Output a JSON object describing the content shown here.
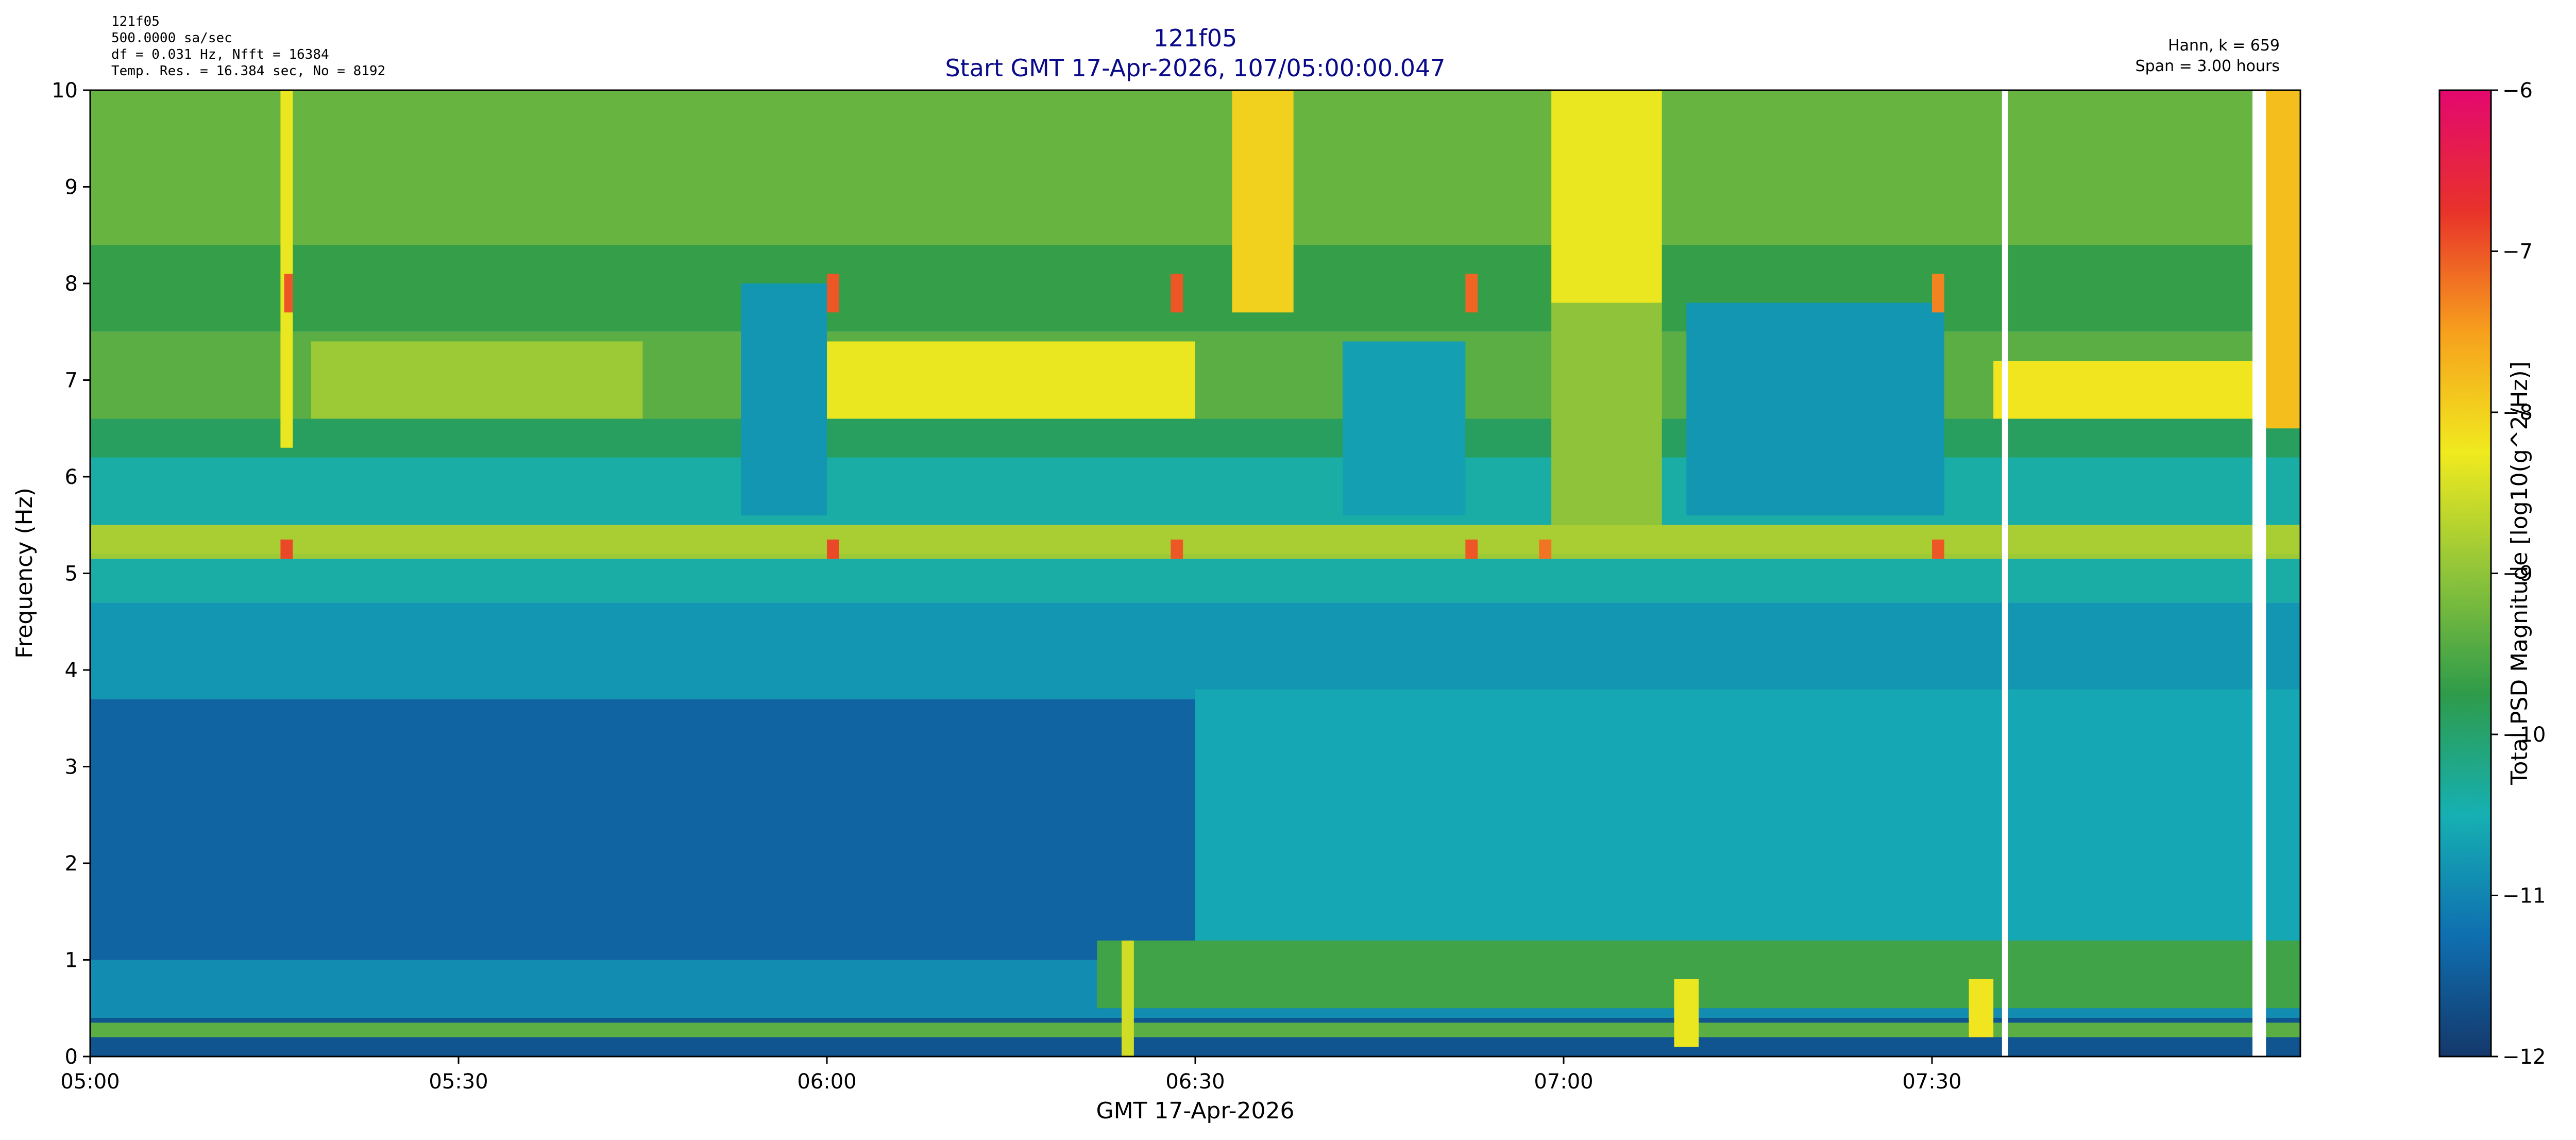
{
  "chart_data": {
    "type": "heatmap",
    "title": "121f05",
    "subtitle": "Start GMT 17-Apr-2026, 107/05:00:00.047",
    "info_lines": [
      "121f05",
      "500.0000 sa/sec",
      "df = 0.031 Hz,  Nfft = 16384",
      "Temp. Res. = 16.384 sec, No = 8192"
    ],
    "right_info_lines": [
      "Hann, k = 659",
      "Span = 3.00 hours"
    ],
    "xlabel": "GMT 17-Apr-2026",
    "ylabel": "Frequency (Hz)",
    "colorbar_label": "Total PSD Magnitude [log10(g^2/Hz)]",
    "x_ticks": [
      "05:00",
      "05:30",
      "06:00",
      "06:30",
      "07:00",
      "07:30"
    ],
    "x_tick_minutes": [
      0,
      30,
      60,
      90,
      120,
      150
    ],
    "xlim_minutes": [
      0,
      180
    ],
    "y_ticks": [
      0,
      1,
      2,
      3,
      4,
      5,
      6,
      7,
      8,
      9,
      10
    ],
    "ylim": [
      0,
      10
    ],
    "colorbar_ticks": [
      -12,
      -11,
      -10,
      -9,
      -8,
      -7,
      -6
    ],
    "clim": [
      -12,
      -6
    ],
    "colormap": [
      "#14386b",
      "#0f6fb0",
      "#16b0b3",
      "#2e9b4a",
      "#8fc43a",
      "#f0ea1e",
      "#f7a01d",
      "#e8322a",
      "#e3086f"
    ],
    "data_gaps_minutes": [
      [
        155.7,
        156.2
      ],
      [
        176.1,
        177.2
      ]
    ],
    "base_level": [
      [
        0.0,
        0.4,
        -11.6
      ],
      [
        0.4,
        1.0,
        -10.9
      ],
      [
        1.0,
        3.7,
        -11.4
      ],
      [
        3.7,
        4.7,
        -10.8
      ],
      [
        4.7,
        5.15,
        -10.4
      ],
      [
        5.15,
        5.5,
        -8.9
      ],
      [
        5.5,
        6.2,
        -10.4
      ],
      [
        6.2,
        6.6,
        -9.9
      ],
      [
        6.6,
        7.5,
        -9.4
      ],
      [
        7.5,
        8.4,
        -9.7
      ],
      [
        8.4,
        10.0,
        -9.3
      ]
    ],
    "features": [
      {
        "t": [
          0,
          180
        ],
        "f": [
          5.2,
          5.5
        ],
        "level": -8.8
      },
      {
        "t": [
          18,
          45
        ],
        "f": [
          6.6,
          7.4
        ],
        "level": -8.9
      },
      {
        "t": [
          60,
          90
        ],
        "f": [
          6.6,
          7.4
        ],
        "level": -8.3
      },
      {
        "t": [
          155,
          180
        ],
        "f": [
          6.6,
          7.2
        ],
        "level": -8.2
      },
      {
        "t": [
          93,
          98
        ],
        "f": [
          7.7,
          10.0
        ],
        "level": -8.0
      },
      {
        "t": [
          119,
          128
        ],
        "f": [
          7.8,
          10.0
        ],
        "level": -8.3
      },
      {
        "t": [
          119,
          128
        ],
        "f": [
          5.5,
          7.8
        ],
        "level": -9.0
      },
      {
        "t": [
          53,
          60
        ],
        "f": [
          5.6,
          8.0
        ],
        "level": -10.8
      },
      {
        "t": [
          102,
          112
        ],
        "f": [
          5.6,
          7.4
        ],
        "level": -10.7
      },
      {
        "t": [
          130,
          151
        ],
        "f": [
          5.6,
          7.8
        ],
        "level": -10.8
      },
      {
        "t": [
          0,
          180
        ],
        "f": [
          0.2,
          0.35
        ],
        "level": -9.4
      },
      {
        "t": [
          82,
          180
        ],
        "f": [
          0.5,
          1.2
        ],
        "level": -9.6
      },
      {
        "t": [
          90,
          180
        ],
        "f": [
          1.2,
          3.8
        ],
        "level": -10.6
      },
      {
        "t": [
          15.5,
          16.5
        ],
        "f": [
          6.3,
          10.0
        ],
        "level": -8.3
      },
      {
        "t": [
          15.8,
          16.5
        ],
        "f": [
          7.7,
          8.1
        ],
        "level": -7.0
      },
      {
        "t": [
          60,
          61
        ],
        "f": [
          7.7,
          8.1
        ],
        "level": -7.0
      },
      {
        "t": [
          88,
          89
        ],
        "f": [
          7.7,
          8.1
        ],
        "level": -7.0
      },
      {
        "t": [
          112,
          113
        ],
        "f": [
          7.7,
          8.1
        ],
        "level": -7.1
      },
      {
        "t": [
          150,
          151
        ],
        "f": [
          7.7,
          8.1
        ],
        "level": -7.3
      },
      {
        "t": [
          15.5,
          16.5
        ],
        "f": [
          5.15,
          5.35
        ],
        "level": -6.9
      },
      {
        "t": [
          60,
          61
        ],
        "f": [
          5.15,
          5.35
        ],
        "level": -6.9
      },
      {
        "t": [
          88,
          89
        ],
        "f": [
          5.15,
          5.35
        ],
        "level": -7.0
      },
      {
        "t": [
          112,
          113
        ],
        "f": [
          5.15,
          5.35
        ],
        "level": -7.0
      },
      {
        "t": [
          118,
          119
        ],
        "f": [
          5.15,
          5.35
        ],
        "level": -7.2
      },
      {
        "t": [
          150,
          151
        ],
        "f": [
          5.15,
          5.35
        ],
        "level": -7.0
      },
      {
        "t": [
          84,
          85
        ],
        "f": [
          0.0,
          1.2
        ],
        "level": -8.5
      },
      {
        "t": [
          129,
          131
        ],
        "f": [
          0.1,
          0.8
        ],
        "level": -8.3
      },
      {
        "t": [
          153,
          155
        ],
        "f": [
          0.2,
          0.8
        ],
        "level": -8.2
      },
      {
        "t": [
          177.2,
          180
        ],
        "f": [
          6.5,
          10.0
        ],
        "level": -7.8
      }
    ]
  }
}
